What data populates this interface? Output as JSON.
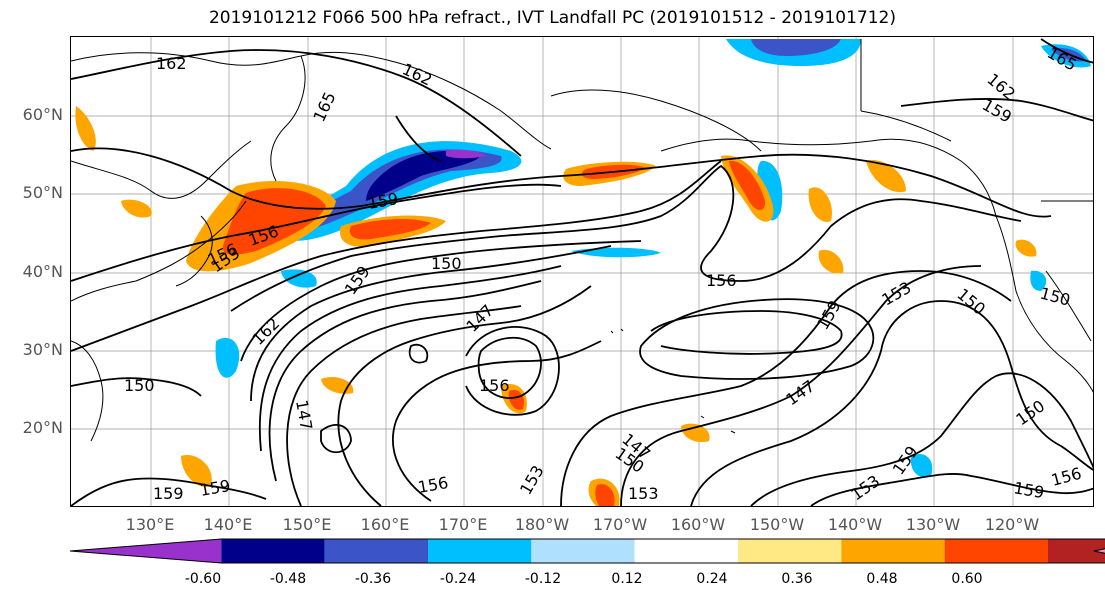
{
  "title": "2019101212 F066 500 hPa refract., IVT Landfall PC (2019101512 - 2019101712)",
  "lat_labels": [
    "60°N",
    "50°N",
    "40°N",
    "30°N",
    "20°N"
  ],
  "lon_labels": [
    "130°E",
    "140°E",
    "150°E",
    "160°E",
    "170°E",
    "180°W",
    "170°W",
    "160°W",
    "150°W",
    "140°W",
    "130°W",
    "120°W"
  ],
  "contour_labels": [
    "162",
    "162",
    "165",
    "162",
    "159",
    "165",
    "159",
    "156",
    "153",
    "159",
    "150",
    "162",
    "150",
    "147",
    "147",
    "156",
    "150",
    "147",
    "153",
    "156",
    "153",
    "159",
    "159",
    "159",
    "153",
    "156",
    "153",
    "150",
    "150",
    "150",
    "156",
    "159",
    "147",
    "159",
    "156"
  ],
  "colorbar": {
    "colors": [
      "#9932cc",
      "#00008b",
      "#3b55c9",
      "#00bfff",
      "#afe1ff",
      "#ffffff",
      "#ffe985",
      "#ffa500",
      "#ff4500",
      "#b22222",
      "#ff88aa"
    ],
    "tick_labels": [
      "-0.60",
      "-0.48",
      "-0.36",
      "-0.24",
      "-0.12",
      "0.12",
      "0.24",
      "0.36",
      "0.48",
      "0.60"
    ]
  },
  "legend_colors": {
    "deep_negative": "#00008b",
    "negative": "#3b55c9",
    "light_negative": "#00bfff",
    "positive": "#ffa500",
    "strong_positive": "#ff4500",
    "contour": "#000000",
    "grid": "#999999"
  }
}
